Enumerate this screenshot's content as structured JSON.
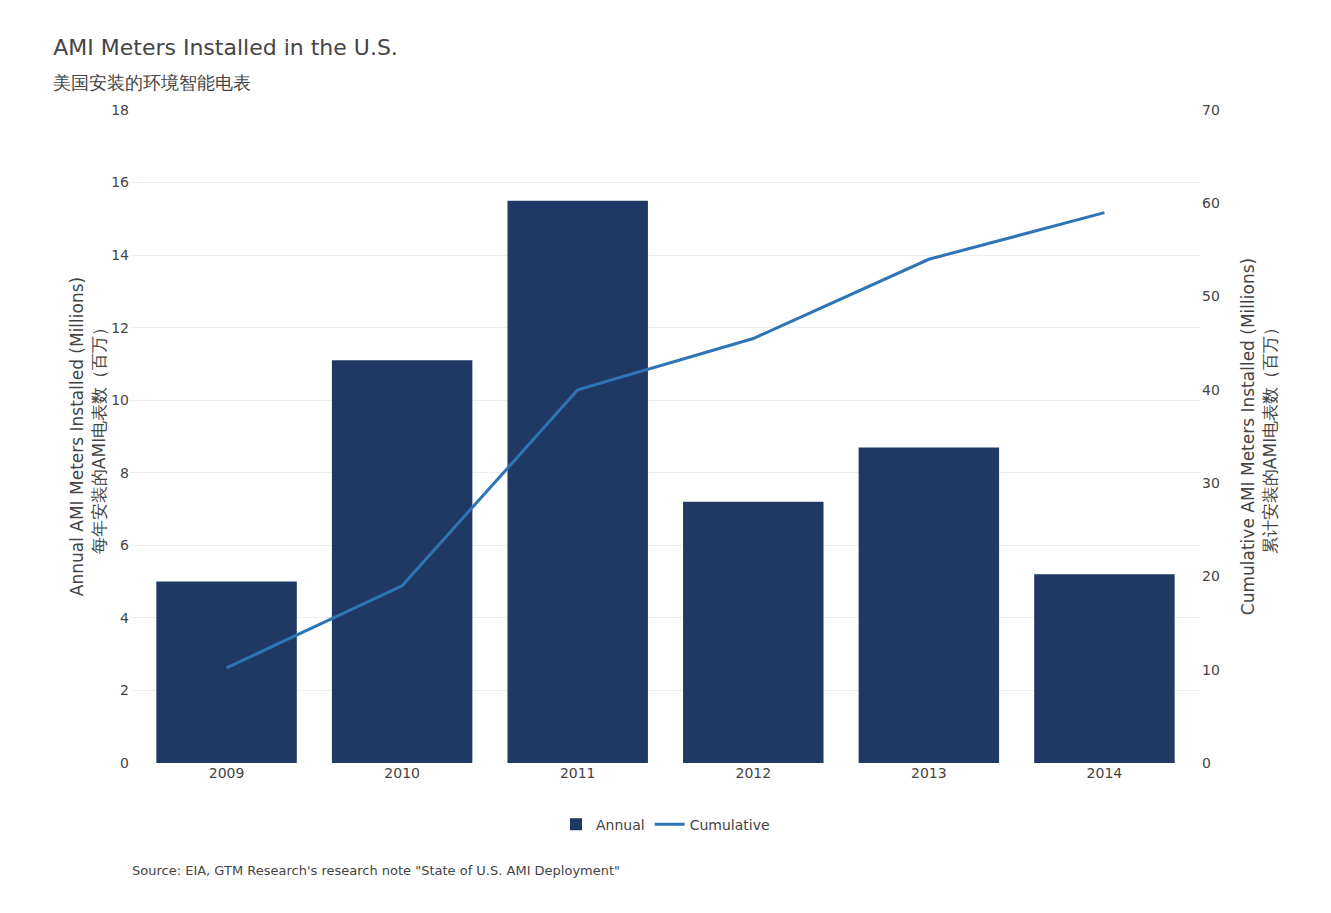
{
  "chart_data": {
    "type": "bar",
    "title": "AMI Meters Installed in the U.S.",
    "subtitle": "美国安装的环境智能电表",
    "categories": [
      "2009",
      "2010",
      "2011",
      "2012",
      "2013",
      "2014"
    ],
    "series": [
      {
        "name": "Annual",
        "type": "bar",
        "color": "#1F3864",
        "values": [
          5.0,
          11.1,
          15.5,
          7.2,
          8.7,
          5.2
        ]
      },
      {
        "name": "Cumulative",
        "type": "line",
        "axis": "y2",
        "color": "#2E75B6",
        "values": [
          10.2,
          19.0,
          40.0,
          45.5,
          54.0,
          59.0
        ]
      }
    ],
    "ylabel": [
      "Annual AMI Meters Installed (Millions)",
      "每年安装的AMI电表数（百万）"
    ],
    "y2label": [
      "Cumulative AMI Meters Installed (Millions)",
      "累计安装的AMI电表数（百万）"
    ],
    "ylim": [
      0,
      18
    ],
    "yticks": [
      0,
      2,
      4,
      6,
      8,
      10,
      12,
      14,
      16,
      18
    ],
    "y2lim": [
      0,
      70
    ],
    "y2ticks": [
      0,
      10,
      20,
      30,
      40,
      50,
      60,
      70
    ],
    "grid": true,
    "legend": "bottom",
    "annotations": [
      "Source: EIA, GTM Research's research note \"State of U.S. AMI Deployment\""
    ]
  }
}
